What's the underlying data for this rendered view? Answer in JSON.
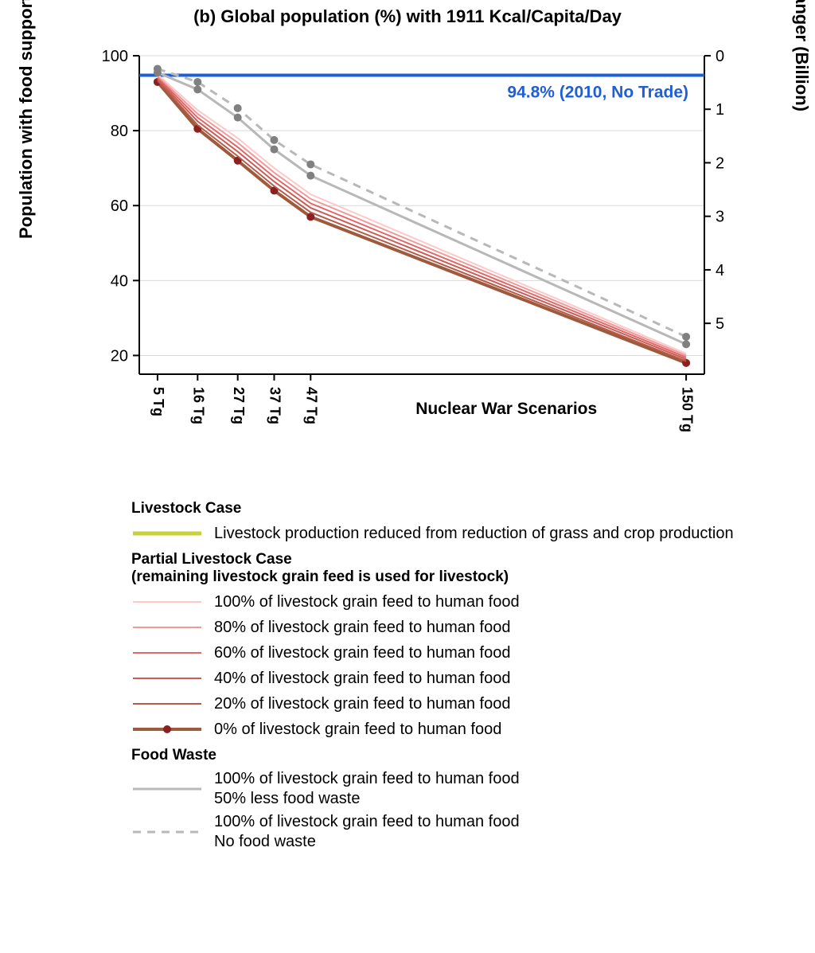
{
  "title": "(b) Global population (%) with 1911 Kcal/Capita/Day",
  "ylabel_left": "Population with food support (%)",
  "ylabel_right": "Population in Danger (Billion)",
  "xaxis_title": "Nuclear War Scenarios",
  "reference_line": {
    "value": 94.8,
    "label": "94.8%  (2010, No Trade)",
    "color": "#1f5fd6",
    "width": 4
  },
  "chart": {
    "plot_bg": "#ffffff",
    "grid_color": "#d9d9d9",
    "axis_color": "#000000",
    "y_left": {
      "min": 15,
      "max": 100,
      "ticks": [
        20,
        40,
        60,
        80,
        100
      ]
    },
    "y_right": {
      "min": 0,
      "max": 5.95,
      "ticks": [
        0,
        1,
        2,
        3,
        4,
        5
      ]
    },
    "x_categories": [
      "5 Tg",
      "16 Tg",
      "27 Tg",
      "37 Tg",
      "47 Tg",
      "150 Tg"
    ],
    "x_positions": [
      5,
      16,
      27,
      37,
      47,
      150
    ],
    "x_min": 0,
    "x_max": 155,
    "series": [
      {
        "id": "plc_0",
        "color": "#9e5a3c",
        "width": 4,
        "marker": true,
        "marker_color": "#8b2020",
        "dash": "",
        "values": [
          93.0,
          80.5,
          72.0,
          64.0,
          57.0,
          18.0
        ]
      },
      {
        "id": "plc_20",
        "color": "#b85a4a",
        "width": 2,
        "marker": false,
        "dash": "",
        "values": [
          93.4,
          81.5,
          73.2,
          65.2,
          58.2,
          18.5
        ]
      },
      {
        "id": "plc_40",
        "color": "#cc5c55",
        "width": 2,
        "marker": false,
        "dash": "",
        "values": [
          93.8,
          82.5,
          74.4,
          66.4,
          59.4,
          19.0
        ]
      },
      {
        "id": "plc_60",
        "color": "#e06868",
        "width": 2,
        "marker": false,
        "dash": "",
        "values": [
          94.2,
          83.5,
          75.6,
          67.6,
          60.6,
          19.5
        ]
      },
      {
        "id": "plc_80",
        "color": "#f09a9a",
        "width": 2,
        "marker": false,
        "dash": "",
        "values": [
          94.6,
          84.5,
          76.8,
          68.8,
          61.8,
          20.0
        ]
      },
      {
        "id": "plc_100",
        "color": "#ffc8c8",
        "width": 2,
        "marker": false,
        "dash": "",
        "values": [
          95.0,
          85.5,
          78.0,
          70.0,
          63.0,
          20.5
        ]
      },
      {
        "id": "fw_50",
        "color": "#b8b8b8",
        "width": 3,
        "marker": true,
        "marker_color": "#808080",
        "dash": "",
        "values": [
          95.5,
          91.0,
          83.5,
          75.0,
          68.0,
          23.0
        ]
      },
      {
        "id": "fw_0",
        "color": "#b8b8b8",
        "width": 3,
        "marker": true,
        "marker_color": "#808080",
        "dash": "10,8",
        "values": [
          96.5,
          93.0,
          86.0,
          77.5,
          71.0,
          25.0
        ]
      }
    ]
  },
  "legend": {
    "livestock_heading": "Livestock Case",
    "livestock_item": {
      "color": "#c8d238",
      "width": 5,
      "text": "Livestock production reduced from reduction of grass and crop production"
    },
    "plc_heading": "Partial Livestock Case\n(remaining livestock grain feed is used for livestock)",
    "plc_items": [
      {
        "color": "#ffc8c8",
        "width": 2,
        "marker": false,
        "text": "100% of livestock grain feed to human food"
      },
      {
        "color": "#f09a9a",
        "width": 2,
        "marker": false,
        "text": "80% of livestock grain feed to human food"
      },
      {
        "color": "#e06868",
        "width": 2,
        "marker": false,
        "text": "60% of livestock grain feed to human food"
      },
      {
        "color": "#cc5c55",
        "width": 2,
        "marker": false,
        "text": "40% of livestock grain feed to human food"
      },
      {
        "color": "#b85a4a",
        "width": 2,
        "marker": false,
        "text": "20% of livestock grain feed to human food"
      },
      {
        "color": "#9e5a3c",
        "width": 4,
        "marker": true,
        "marker_color": "#8b2020",
        "text": "0% of livestock grain feed to human food"
      }
    ],
    "fw_heading": "Food Waste",
    "fw_items": [
      {
        "color": "#b8b8b8",
        "width": 3,
        "dash": "",
        "text": "100% of livestock grain feed to human food\n50% less food waste"
      },
      {
        "color": "#b8b8b8",
        "width": 3,
        "dash": "10,8",
        "text": "100% of livestock grain feed to human food\nNo food waste"
      }
    ]
  }
}
